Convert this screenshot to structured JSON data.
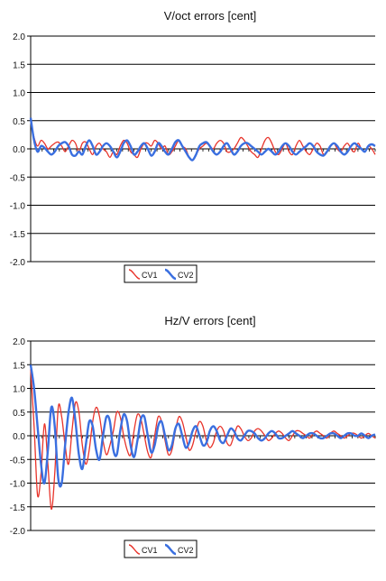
{
  "chart_data": [
    {
      "type": "line",
      "title": "V/oct errors [cent]",
      "xlabel": "",
      "ylabel": "",
      "ylim": [
        -2.0,
        2.0
      ],
      "yticks": [
        "2.0",
        "1.5",
        "1.0",
        "0.5",
        "0.0",
        "-0.5",
        "-1.0",
        "-1.5",
        "-2.0"
      ],
      "xlim": [
        0,
        100
      ],
      "grid": "horizontal",
      "legend_position": "bottom-center",
      "series": [
        {
          "name": "CV1",
          "color": "#e8332a",
          "x": [
            0,
            1,
            2,
            3,
            4,
            5,
            6,
            7,
            8,
            9,
            10,
            11,
            12,
            13,
            14,
            15,
            16,
            17,
            18,
            19,
            20,
            21,
            22,
            23,
            24,
            25,
            26,
            27,
            28,
            29,
            30,
            31,
            32,
            33,
            34,
            35,
            36,
            37,
            38,
            39,
            40,
            41,
            42,
            43,
            44,
            45,
            46,
            47,
            48,
            49,
            50,
            51,
            52,
            53,
            54,
            55,
            56,
            57,
            58,
            59,
            60,
            61,
            62,
            63,
            64,
            65,
            66,
            67,
            68,
            69,
            70,
            71,
            72,
            73,
            74,
            75,
            76,
            77,
            78,
            79,
            80,
            81,
            82,
            83,
            84,
            85,
            86,
            87,
            88,
            89,
            90,
            91,
            92,
            93,
            94,
            95,
            96,
            97,
            98,
            99,
            100
          ],
          "values": [
            0.5,
            0.2,
            0.05,
            0.15,
            0.1,
            0.0,
            0.05,
            0.1,
            0.12,
            0.05,
            -0.05,
            0.05,
            0.15,
            0.1,
            -0.05,
            0.1,
            0.12,
            0.0,
            -0.1,
            0.05,
            0.1,
            0.0,
            -0.05,
            -0.15,
            -0.05,
            -0.1,
            0.05,
            0.15,
            0.1,
            -0.05,
            -0.1,
            -0.15,
            0.0,
            0.1,
            0.1,
            0.05,
            0.15,
            0.1,
            0.0,
            0.05,
            -0.1,
            -0.05,
            0.05,
            0.15,
            0.05,
            0.0,
            -0.15,
            -0.2,
            -0.1,
            0.0,
            0.05,
            0.1,
            0.05,
            0.0,
            0.1,
            0.15,
            0.1,
            -0.05,
            -0.05,
            0.0,
            0.1,
            0.2,
            0.15,
            0.05,
            -0.05,
            -0.1,
            -0.15,
            0.0,
            0.15,
            0.2,
            0.1,
            -0.05,
            -0.1,
            0.0,
            0.1,
            -0.05,
            -0.1,
            0.05,
            0.15,
            0.05,
            -0.05,
            -0.1,
            0.0,
            0.1,
            0.05,
            -0.1,
            -0.05,
            0.05,
            0.1,
            0.0,
            -0.05,
            0.05,
            0.1,
            0.0,
            -0.05,
            0.1,
            0.0,
            -0.05,
            0.05,
            0.0,
            -0.1
          ]
        },
        {
          "name": "CV2",
          "color": "#3a6fe0",
          "x": [
            0,
            1,
            2,
            3,
            4,
            5,
            6,
            7,
            8,
            9,
            10,
            11,
            12,
            13,
            14,
            15,
            16,
            17,
            18,
            19,
            20,
            21,
            22,
            23,
            24,
            25,
            26,
            27,
            28,
            29,
            30,
            31,
            32,
            33,
            34,
            35,
            36,
            37,
            38,
            39,
            40,
            41,
            42,
            43,
            44,
            45,
            46,
            47,
            48,
            49,
            50,
            51,
            52,
            53,
            54,
            55,
            56,
            57,
            58,
            59,
            60,
            61,
            62,
            63,
            64,
            65,
            66,
            67,
            68,
            69,
            70,
            71,
            72,
            73,
            74,
            75,
            76,
            77,
            78,
            79,
            80,
            81,
            82,
            83,
            84,
            85,
            86,
            87,
            88,
            89,
            90,
            91,
            92,
            93,
            94,
            95,
            96,
            97,
            98,
            99,
            100
          ],
          "values": [
            0.55,
            0.15,
            -0.05,
            0.05,
            0.02,
            -0.05,
            -0.1,
            -0.05,
            0.05,
            0.1,
            0.12,
            0.05,
            -0.1,
            -0.12,
            -0.05,
            -0.1,
            0.05,
            0.15,
            0.05,
            -0.1,
            -0.05,
            0.05,
            0.1,
            0.05,
            -0.05,
            -0.15,
            -0.05,
            0.1,
            0.15,
            0.05,
            -0.1,
            -0.05,
            0.05,
            0.1,
            0.0,
            -0.12,
            -0.05,
            0.1,
            0.05,
            -0.05,
            -0.1,
            0.0,
            0.12,
            0.15,
            0.05,
            -0.05,
            -0.15,
            -0.2,
            -0.1,
            0.05,
            0.1,
            0.12,
            0.05,
            -0.05,
            -0.1,
            -0.05,
            0.05,
            0.1,
            0.0,
            -0.1,
            -0.05,
            0.05,
            0.1,
            0.1,
            0.05,
            0.0,
            -0.05,
            -0.1,
            -0.05,
            0.0,
            -0.05,
            -0.1,
            -0.05,
            0.05,
            0.1,
            0.05,
            -0.05,
            -0.1,
            -0.05,
            0.0,
            0.05,
            0.1,
            0.05,
            -0.05,
            -0.1,
            -0.12,
            -0.05,
            0.05,
            0.1,
            0.05,
            -0.05,
            -0.1,
            -0.05,
            0.05,
            0.1,
            0.05,
            0.0,
            -0.05,
            0.05,
            0.08,
            0.05
          ]
        }
      ]
    },
    {
      "type": "line",
      "title": "Hz/V errors [cent]",
      "xlabel": "",
      "ylabel": "",
      "ylim": [
        -2.0,
        2.0
      ],
      "yticks": [
        "2.0",
        "1.5",
        "1.0",
        "0.5",
        "0.0",
        "-0.5",
        "-1.0",
        "-1.5",
        "-2.0"
      ],
      "xlim": [
        0,
        100
      ],
      "grid": "horizontal",
      "legend_position": "bottom-center",
      "series": [
        {
          "name": "CV1",
          "color": "#e8332a",
          "x": [
            0,
            1,
            2,
            3,
            4,
            5,
            6,
            7,
            8,
            9,
            10,
            11,
            12,
            13,
            14,
            15,
            16,
            17,
            18,
            19,
            20,
            21,
            22,
            23,
            24,
            25,
            26,
            27,
            28,
            29,
            30,
            31,
            32,
            33,
            34,
            35,
            36,
            37,
            38,
            39,
            40,
            41,
            42,
            43,
            44,
            45,
            46,
            47,
            48,
            49,
            50,
            51,
            52,
            53,
            54,
            55,
            56,
            57,
            58,
            59,
            60,
            61,
            62,
            63,
            64,
            65,
            66,
            67,
            68,
            69,
            70,
            71,
            72,
            73,
            74,
            75,
            76,
            77,
            78,
            79,
            80,
            81,
            82,
            83,
            84,
            85,
            86,
            87,
            88,
            89,
            90,
            91,
            92,
            93,
            94,
            95,
            96,
            97,
            98,
            99,
            100
          ],
          "values": [
            1.4,
            0.2,
            -1.25,
            -0.8,
            0.25,
            -0.6,
            -1.55,
            -0.8,
            0.6,
            0.4,
            -0.2,
            -0.6,
            0.1,
            0.7,
            0.5,
            -0.2,
            -0.6,
            -0.3,
            0.3,
            0.6,
            0.4,
            -0.1,
            -0.4,
            -0.2,
            0.1,
            0.5,
            0.4,
            0.0,
            -0.3,
            -0.4,
            0.1,
            0.45,
            0.35,
            0.0,
            -0.35,
            -0.45,
            0.0,
            0.4,
            0.3,
            -0.1,
            -0.4,
            -0.3,
            0.1,
            0.4,
            0.3,
            0.0,
            -0.3,
            -0.2,
            0.1,
            0.3,
            0.2,
            -0.1,
            -0.25,
            -0.15,
            0.1,
            0.2,
            0.1,
            -0.15,
            -0.2,
            0.0,
            0.2,
            0.15,
            0.0,
            -0.1,
            -0.05,
            0.1,
            0.15,
            0.1,
            0.0,
            -0.1,
            -0.05,
            0.05,
            0.1,
            0.05,
            -0.05,
            -0.1,
            0.0,
            0.1,
            0.1,
            0.05,
            0.0,
            -0.05,
            0.05,
            0.1,
            0.05,
            0.0,
            -0.05,
            0.05,
            0.1,
            0.05,
            0.0,
            -0.05,
            0.0,
            0.05,
            0.05,
            0.0,
            -0.05,
            0.0,
            0.05,
            0.0,
            -0.05
          ]
        },
        {
          "name": "CV2",
          "color": "#3a6fe0",
          "x": [
            0,
            1,
            2,
            3,
            4,
            5,
            6,
            7,
            8,
            9,
            10,
            11,
            12,
            13,
            14,
            15,
            16,
            17,
            18,
            19,
            20,
            21,
            22,
            23,
            24,
            25,
            26,
            27,
            28,
            29,
            30,
            31,
            32,
            33,
            34,
            35,
            36,
            37,
            38,
            39,
            40,
            41,
            42,
            43,
            44,
            45,
            46,
            47,
            48,
            49,
            50,
            51,
            52,
            53,
            54,
            55,
            56,
            57,
            58,
            59,
            60,
            61,
            62,
            63,
            64,
            65,
            66,
            67,
            68,
            69,
            70,
            71,
            72,
            73,
            74,
            75,
            76,
            77,
            78,
            79,
            80,
            81,
            82,
            83,
            84,
            85,
            86,
            87,
            88,
            89,
            90,
            91,
            92,
            93,
            94,
            95,
            96,
            97,
            98,
            99,
            100
          ],
          "values": [
            1.5,
            1.0,
            0.2,
            -0.6,
            -1.0,
            -0.3,
            0.6,
            0.2,
            -0.9,
            -1.0,
            -0.2,
            0.5,
            0.8,
            0.3,
            -0.4,
            -0.7,
            -0.2,
            0.3,
            0.2,
            -0.3,
            -0.5,
            0.0,
            0.4,
            0.3,
            -0.3,
            -0.4,
            0.1,
            0.45,
            0.3,
            -0.2,
            -0.45,
            -0.1,
            0.35,
            0.4,
            0.0,
            -0.35,
            -0.2,
            0.2,
            0.3,
            0.0,
            -0.3,
            -0.2,
            0.15,
            0.25,
            0.0,
            -0.25,
            -0.15,
            0.1,
            0.2,
            0.0,
            -0.2,
            -0.15,
            0.1,
            0.2,
            0.1,
            -0.1,
            -0.15,
            0.0,
            0.15,
            0.1,
            -0.05,
            -0.1,
            0.0,
            0.1,
            0.1,
            0.05,
            -0.05,
            -0.1,
            -0.05,
            0.05,
            0.1,
            0.05,
            -0.05,
            -0.05,
            0.0,
            0.05,
            0.1,
            0.05,
            0.0,
            -0.05,
            0.0,
            0.05,
            0.05,
            0.0,
            -0.05,
            -0.05,
            0.0,
            0.05,
            0.05,
            0.0,
            -0.05,
            0.0,
            0.05,
            0.05,
            0.0,
            0.0,
            0.05,
            0.0,
            -0.05,
            0.0,
            0.03
          ]
        }
      ]
    }
  ]
}
